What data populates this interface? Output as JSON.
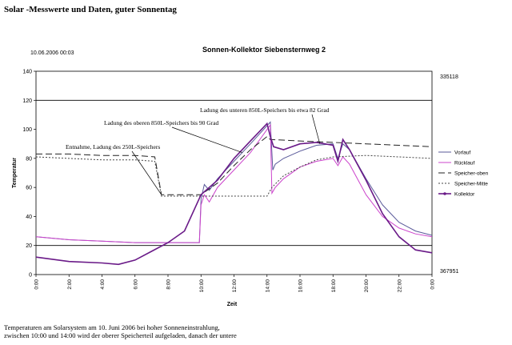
{
  "page": {
    "title": "Solar -Messwerte und Daten, guter Sonnentag",
    "caption_lines": [
      "Temperaturen am Solarsystem am 10. Juni 2006 bei hoher Sonneneinstrahlung,",
      "zwischen 10:00 und 14:00 wird der oberer Speicherteil aufgeladen, danach der untere"
    ]
  },
  "chart_data": {
    "type": "line",
    "title": "Sonnen-Kollektor Siebensternweg 2",
    "timestamp": "10.06.2006 00:03",
    "xlabel": "Zeit",
    "ylabel": "Temperatur",
    "ylim": [
      0,
      140
    ],
    "xlim": [
      0,
      24
    ],
    "yticks": [
      0,
      20,
      40,
      60,
      80,
      100,
      120,
      140
    ],
    "xticks": [
      "0:00",
      "2:00",
      "4:00",
      "6:00",
      "8:00",
      "10:00",
      "12:00",
      "14:00",
      "16:00",
      "18:00",
      "20:00",
      "22:00",
      "0:00"
    ],
    "right_labels": {
      "top": "335118",
      "bottom": "367951"
    },
    "reference_lines": [
      20,
      120
    ],
    "annotations": [
      {
        "text": "Ladung des unteren 850L-Speichers bis etwa 82 Grad",
        "target": [
          17.2,
          90
        ]
      },
      {
        "text": "Ladung des oberen 850L-Speichers bis 90 Grad",
        "target": [
          12.5,
          84
        ]
      },
      {
        "text": "Entnahme, Ladung des 250L-Speichers",
        "target": [
          7.6,
          55
        ]
      }
    ],
    "series": [
      {
        "name": "Vorlauf",
        "color": "#5a5a9a",
        "dash": "solid",
        "points": [
          [
            0,
            26
          ],
          [
            2,
            24
          ],
          [
            4,
            23
          ],
          [
            6,
            22
          ],
          [
            8,
            22
          ],
          [
            9.9,
            22
          ],
          [
            10.0,
            52
          ],
          [
            10.2,
            62
          ],
          [
            10.5,
            58
          ],
          [
            11,
            66
          ],
          [
            12,
            78
          ],
          [
            13,
            90
          ],
          [
            14.2,
            105
          ],
          [
            14.35,
            72
          ],
          [
            14.5,
            76
          ],
          [
            15,
            80
          ],
          [
            16,
            85
          ],
          [
            17,
            89
          ],
          [
            18,
            90
          ],
          [
            18.3,
            80
          ],
          [
            18.6,
            90
          ],
          [
            19,
            86
          ],
          [
            20,
            66
          ],
          [
            21,
            48
          ],
          [
            22,
            36
          ],
          [
            23,
            30
          ],
          [
            24,
            27
          ]
        ]
      },
      {
        "name": "Rücklauf",
        "color": "#cc44cc",
        "dash": "solid",
        "points": [
          [
            0,
            26
          ],
          [
            2,
            24
          ],
          [
            4,
            23
          ],
          [
            6,
            22
          ],
          [
            8,
            22
          ],
          [
            9.9,
            22
          ],
          [
            10.0,
            48
          ],
          [
            10.2,
            55
          ],
          [
            10.5,
            50
          ],
          [
            11,
            60
          ],
          [
            12,
            72
          ],
          [
            13,
            84
          ],
          [
            14.2,
            103
          ],
          [
            14.3,
            56
          ],
          [
            14.5,
            60
          ],
          [
            15,
            66
          ],
          [
            16,
            74
          ],
          [
            17,
            78
          ],
          [
            18,
            80
          ],
          [
            18.3,
            75
          ],
          [
            18.6,
            81
          ],
          [
            19,
            76
          ],
          [
            20,
            55
          ],
          [
            21,
            40
          ],
          [
            22,
            32
          ],
          [
            23,
            28
          ],
          [
            24,
            26
          ]
        ]
      },
      {
        "name": "Speicher-oben",
        "color": "#222222",
        "dash": "8,4",
        "points": [
          [
            0,
            83
          ],
          [
            2,
            83
          ],
          [
            4,
            82
          ],
          [
            6,
            82
          ],
          [
            7.2,
            81
          ],
          [
            7.6,
            55
          ],
          [
            9,
            55
          ],
          [
            10,
            55
          ],
          [
            11,
            63
          ],
          [
            12,
            75
          ],
          [
            13,
            86
          ],
          [
            14,
            95
          ],
          [
            14.2,
            93
          ],
          [
            16,
            92
          ],
          [
            18,
            91
          ],
          [
            20,
            90
          ],
          [
            22,
            89
          ],
          [
            24,
            88
          ]
        ]
      },
      {
        "name": "Speicher-Mitte",
        "color": "#444444",
        "dash": "2,2",
        "points": [
          [
            0,
            81
          ],
          [
            2,
            80
          ],
          [
            4,
            79
          ],
          [
            6,
            79
          ],
          [
            7.2,
            78
          ],
          [
            7.6,
            54
          ],
          [
            9,
            54
          ],
          [
            10,
            54
          ],
          [
            12,
            54
          ],
          [
            14,
            54
          ],
          [
            14.3,
            60
          ],
          [
            15,
            68
          ],
          [
            16,
            74
          ],
          [
            17,
            79
          ],
          [
            18,
            81
          ],
          [
            20,
            82
          ],
          [
            22,
            81
          ],
          [
            24,
            80
          ]
        ]
      },
      {
        "name": "Kollektor",
        "color": "#6a1a88",
        "dash": "solid",
        "points": [
          [
            0,
            12
          ],
          [
            2,
            9
          ],
          [
            4,
            8
          ],
          [
            5,
            7
          ],
          [
            6,
            10
          ],
          [
            7,
            16
          ],
          [
            8,
            22
          ],
          [
            9,
            30
          ],
          [
            10,
            55
          ],
          [
            11,
            65
          ],
          [
            12,
            80
          ],
          [
            13,
            92
          ],
          [
            14,
            104
          ],
          [
            14.2,
            95
          ],
          [
            14.4,
            88
          ],
          [
            15,
            86
          ],
          [
            16,
            90
          ],
          [
            17,
            91
          ],
          [
            18,
            89
          ],
          [
            18.3,
            78
          ],
          [
            18.6,
            93
          ],
          [
            19,
            86
          ],
          [
            20,
            65
          ],
          [
            21,
            42
          ],
          [
            22,
            26
          ],
          [
            23,
            17
          ],
          [
            24,
            15
          ]
        ]
      }
    ]
  }
}
